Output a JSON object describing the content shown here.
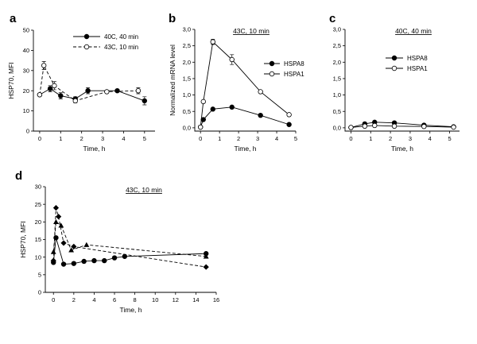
{
  "chart_data": [
    {
      "id": "a",
      "type": "line",
      "panel_label": "a",
      "xlabel": "Time, h",
      "ylabel": "HSP70, MFI",
      "xlim": [
        -0.3,
        5.5
      ],
      "ylim": [
        0,
        50
      ],
      "xticks": [
        0,
        1,
        2,
        3,
        4,
        5
      ],
      "yticks": [
        0,
        10,
        20,
        30,
        40,
        50
      ],
      "legend_position": "top-right",
      "series": [
        {
          "name": "40C, 40 min",
          "marker": "filled-circle",
          "dash": "solid",
          "x": [
            0,
            0.5,
            1,
            1.7,
            2.3,
            3.7,
            5
          ],
          "y": [
            18,
            21,
            17.5,
            16,
            20,
            20,
            15
          ],
          "err": [
            0,
            1.5,
            1.5,
            1,
            1.5,
            0.5,
            2
          ]
        },
        {
          "name": "43C, 10 min",
          "marker": "open-circle",
          "dash": "dashed",
          "x": [
            0,
            0.2,
            0.7,
            1.7,
            3.2,
            4.7
          ],
          "y": [
            18,
            32.5,
            22.5,
            15,
            19.5,
            20
          ],
          "err": [
            0,
            2,
            2,
            1,
            0.5,
            1.5
          ]
        }
      ]
    },
    {
      "id": "b",
      "type": "line",
      "panel_label": "b",
      "title": "43C, 10 min",
      "xlabel": "Time, h",
      "ylabel": "Normalized mRNA level",
      "xlim": [
        -0.3,
        5
      ],
      "ylim": [
        -0.1,
        3.0
      ],
      "xticks": [
        0,
        1,
        2,
        3,
        4,
        5
      ],
      "yticks": [
        0.0,
        0.5,
        1.0,
        1.5,
        2.0,
        2.5,
        3.0
      ],
      "ytick_labels": [
        "0,0",
        "0,5",
        "1,0",
        "1,5",
        "2,0",
        "2,5",
        "3,0"
      ],
      "legend_position": "top-right",
      "series": [
        {
          "name": "HSPA8",
          "marker": "filled-circle",
          "dash": "solid",
          "x": [
            0,
            0.15,
            0.65,
            1.65,
            3.15,
            4.65
          ],
          "y": [
            0.02,
            0.25,
            0.57,
            0.63,
            0.38,
            0.1
          ],
          "err": [
            0,
            0,
            0,
            0,
            0,
            0
          ]
        },
        {
          "name": "HSPA1",
          "marker": "open-circle",
          "dash": "solid",
          "x": [
            0,
            0.15,
            0.65,
            1.65,
            3.15,
            4.65
          ],
          "y": [
            0.02,
            0.8,
            2.62,
            2.08,
            1.1,
            0.4
          ],
          "err": [
            0,
            0,
            0.08,
            0.15,
            0,
            0
          ]
        }
      ]
    },
    {
      "id": "c",
      "type": "line",
      "panel_label": "c",
      "title": "40C, 40 min",
      "xlabel": "Time, h",
      "ylabel": "",
      "xlim": [
        -0.3,
        5.5
      ],
      "ylim": [
        -0.1,
        3.0
      ],
      "xticks": [
        0,
        1,
        2,
        3,
        4,
        5
      ],
      "yticks": [
        0.0,
        0.5,
        1.0,
        1.5,
        2.0,
        2.5,
        3.0
      ],
      "ytick_labels": [
        "0,0",
        "0,5",
        "1,0",
        "1,5",
        "2,0",
        "2,5",
        "3,0"
      ],
      "legend_position": "middle-left",
      "series": [
        {
          "name": "HSPA8",
          "marker": "filled-circle",
          "dash": "solid",
          "x": [
            0,
            0.7,
            1.2,
            2.2,
            3.7,
            5.2
          ],
          "y": [
            0.01,
            0.12,
            0.17,
            0.15,
            0.08,
            0.03
          ],
          "err": [
            0,
            0,
            0,
            0,
            0,
            0
          ]
        },
        {
          "name": "HSPA1",
          "marker": "open-circle",
          "dash": "solid",
          "x": [
            0,
            0.7,
            1.2,
            2.2,
            3.7,
            5.2
          ],
          "y": [
            0.01,
            0.05,
            0.07,
            0.05,
            0.04,
            0.02
          ],
          "err": [
            0,
            0,
            0,
            0,
            0,
            0
          ]
        }
      ]
    },
    {
      "id": "d",
      "type": "line",
      "panel_label": "d",
      "title": "43C, 10 min",
      "xlabel": "Time, h",
      "ylabel": "HSP70, MFI",
      "xlim": [
        -0.8,
        16
      ],
      "ylim": [
        0,
        30
      ],
      "xticks": [
        0,
        2,
        4,
        6,
        8,
        10,
        12,
        14,
        16
      ],
      "yticks": [
        0,
        5,
        10,
        15,
        20,
        25,
        30
      ],
      "series": [
        {
          "marker": "filled-circle",
          "dash": "solid",
          "x": [
            0,
            0.25,
            1,
            2,
            3,
            4,
            5,
            6,
            7,
            15
          ],
          "y": [
            8.5,
            15.5,
            8,
            8.2,
            8.8,
            9,
            9,
            9.8,
            10.2,
            11
          ]
        },
        {
          "marker": "filled-diamond",
          "dash": "dashed",
          "x": [
            0,
            0.25,
            0.5,
            1,
            2,
            15
          ],
          "y": [
            9,
            24,
            21.5,
            14,
            13,
            7.2
          ]
        },
        {
          "marker": "filled-triangle",
          "dash": "dashed",
          "x": [
            0,
            0.25,
            0.75,
            1.75,
            3.25,
            15
          ],
          "y": [
            11.5,
            20,
            19,
            12,
            13.5,
            10.2
          ]
        }
      ]
    }
  ]
}
